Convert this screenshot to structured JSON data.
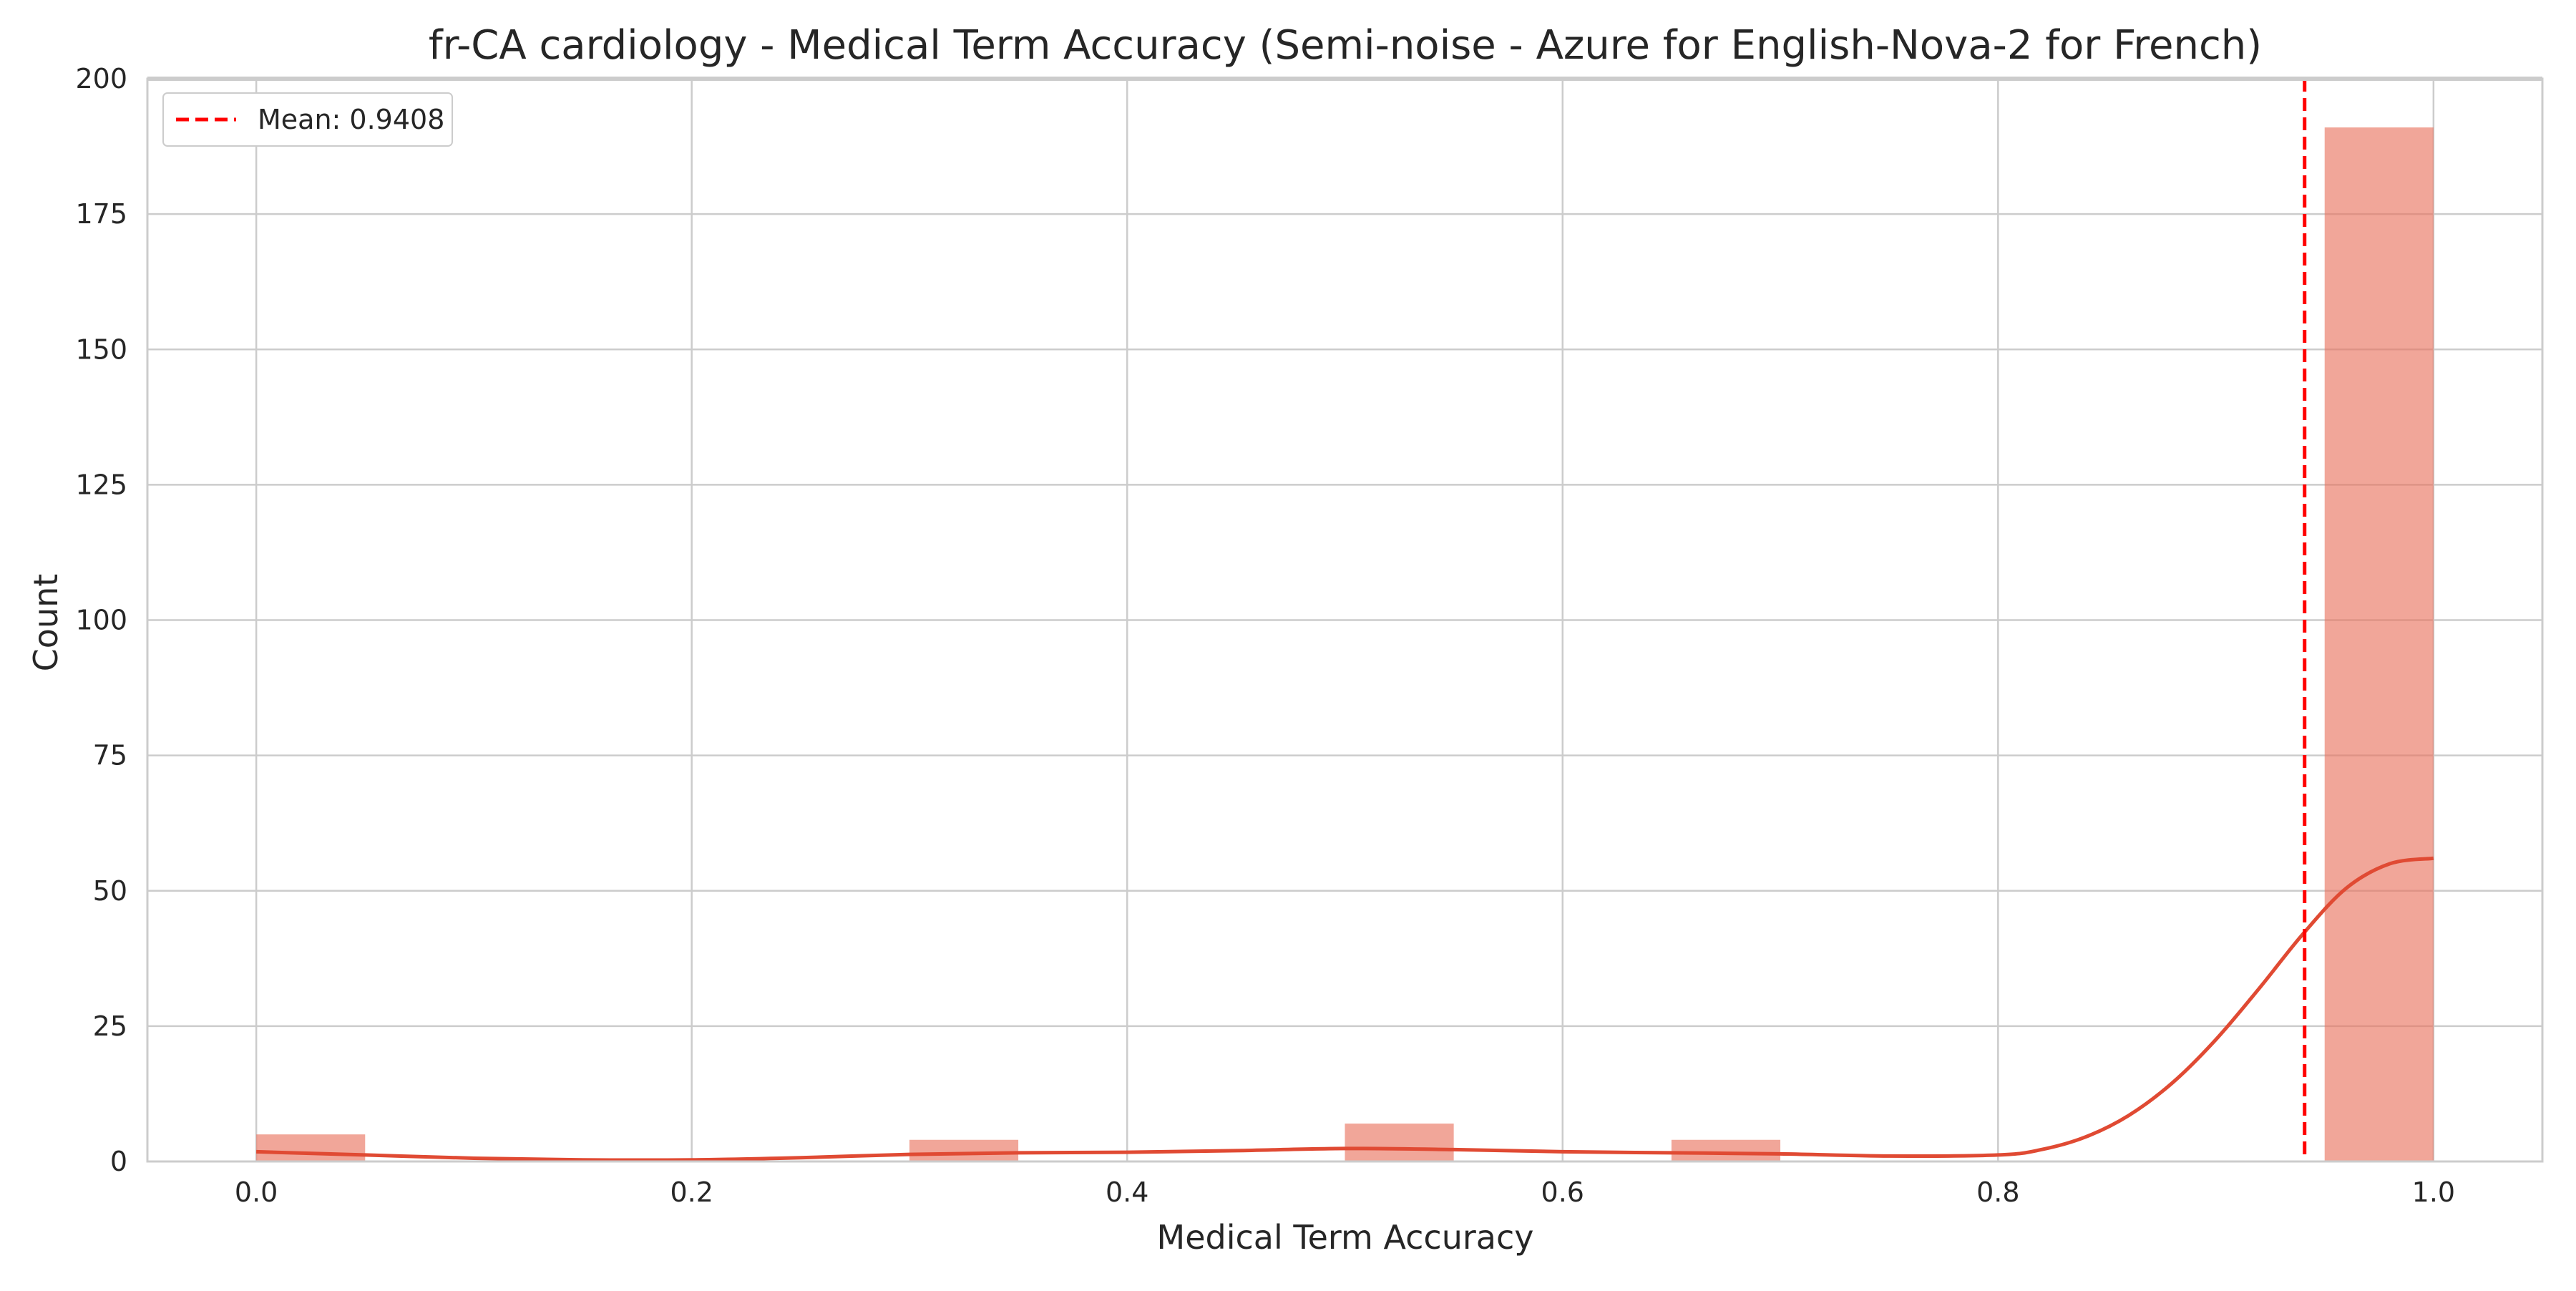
{
  "chart_data": {
    "type": "bar",
    "title": "fr-CA cardiology - Medical Term Accuracy (Semi-noise - Azure for English-Nova-2 for French)",
    "xlabel": "Medical Term Accuracy",
    "ylabel": "Count",
    "xlim": [
      -0.05,
      1.05
    ],
    "ylim": [
      0,
      200
    ],
    "x_ticks": [
      "0.0",
      "0.2",
      "0.4",
      "0.6",
      "0.8",
      "1.0"
    ],
    "y_ticks": [
      "0",
      "25",
      "50",
      "75",
      "100",
      "125",
      "150",
      "175",
      "200"
    ],
    "grid": true,
    "bin_width": 0.05,
    "bins": [
      {
        "x": 0.0,
        "count": 5
      },
      {
        "x": 0.05,
        "count": 0
      },
      {
        "x": 0.1,
        "count": 0
      },
      {
        "x": 0.15,
        "count": 0
      },
      {
        "x": 0.2,
        "count": 0
      },
      {
        "x": 0.25,
        "count": 0
      },
      {
        "x": 0.3,
        "count": 4
      },
      {
        "x": 0.35,
        "count": 0
      },
      {
        "x": 0.4,
        "count": 0
      },
      {
        "x": 0.45,
        "count": 0
      },
      {
        "x": 0.5,
        "count": 7
      },
      {
        "x": 0.55,
        "count": 0
      },
      {
        "x": 0.6,
        "count": 0
      },
      {
        "x": 0.65,
        "count": 4
      },
      {
        "x": 0.7,
        "count": 0
      },
      {
        "x": 0.75,
        "count": 0
      },
      {
        "x": 0.8,
        "count": 0
      },
      {
        "x": 0.85,
        "count": 0
      },
      {
        "x": 0.9,
        "count": 0
      },
      {
        "x": 0.95,
        "count": 191
      }
    ],
    "kde": {
      "x": [
        0.0,
        0.05,
        0.1,
        0.15,
        0.2,
        0.25,
        0.3,
        0.35,
        0.4,
        0.45,
        0.5,
        0.55,
        0.6,
        0.65,
        0.7,
        0.75,
        0.8,
        0.82,
        0.84,
        0.86,
        0.88,
        0.9,
        0.92,
        0.94,
        0.96,
        0.98,
        1.0
      ],
      "y": [
        1.8,
        1.2,
        0.6,
        0.3,
        0.3,
        0.7,
        1.3,
        1.6,
        1.7,
        2.0,
        2.4,
        2.2,
        1.8,
        1.6,
        1.4,
        1.0,
        1.2,
        2.2,
        4.5,
        8.5,
        14.5,
        22.5,
        32.0,
        42.0,
        50.5,
        55.0,
        56.0
      ]
    },
    "mean_line": {
      "value": 0.9408,
      "label": "Mean: 0.9408"
    },
    "legend_position": "top-left",
    "colors": {
      "bar": "#e8705a",
      "kde": "#e04a33",
      "mean": "#ff0000",
      "grid": "#cccccc",
      "spine": "#cccccc"
    }
  }
}
